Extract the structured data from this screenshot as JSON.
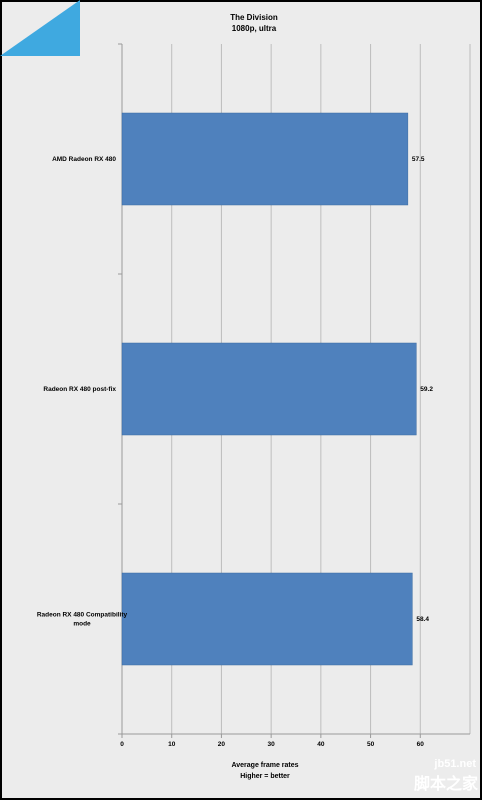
{
  "chart_data": {
    "type": "bar",
    "orientation": "horizontal",
    "title": "The Division",
    "subtitle": "1080p, ultra",
    "categories": [
      "AMD Radeon RX 480",
      "Radeon RX 480 post-fix",
      "Radeon RX 480 Compatibility mode"
    ],
    "values": [
      57.5,
      59.2,
      58.4
    ],
    "data_labels": [
      "57.5",
      "59.2",
      "58.4"
    ],
    "xlabel": "Average frame rates",
    "xlabel2": "Higher = better",
    "xlim": [
      0,
      70
    ],
    "xticks": [
      "0",
      "10",
      "20",
      "30",
      "40",
      "50",
      "60"
    ],
    "grid": true,
    "bar_color": "#4f81bd"
  },
  "watermark": {
    "site": "jb51.net",
    "name": "脚本之家"
  }
}
